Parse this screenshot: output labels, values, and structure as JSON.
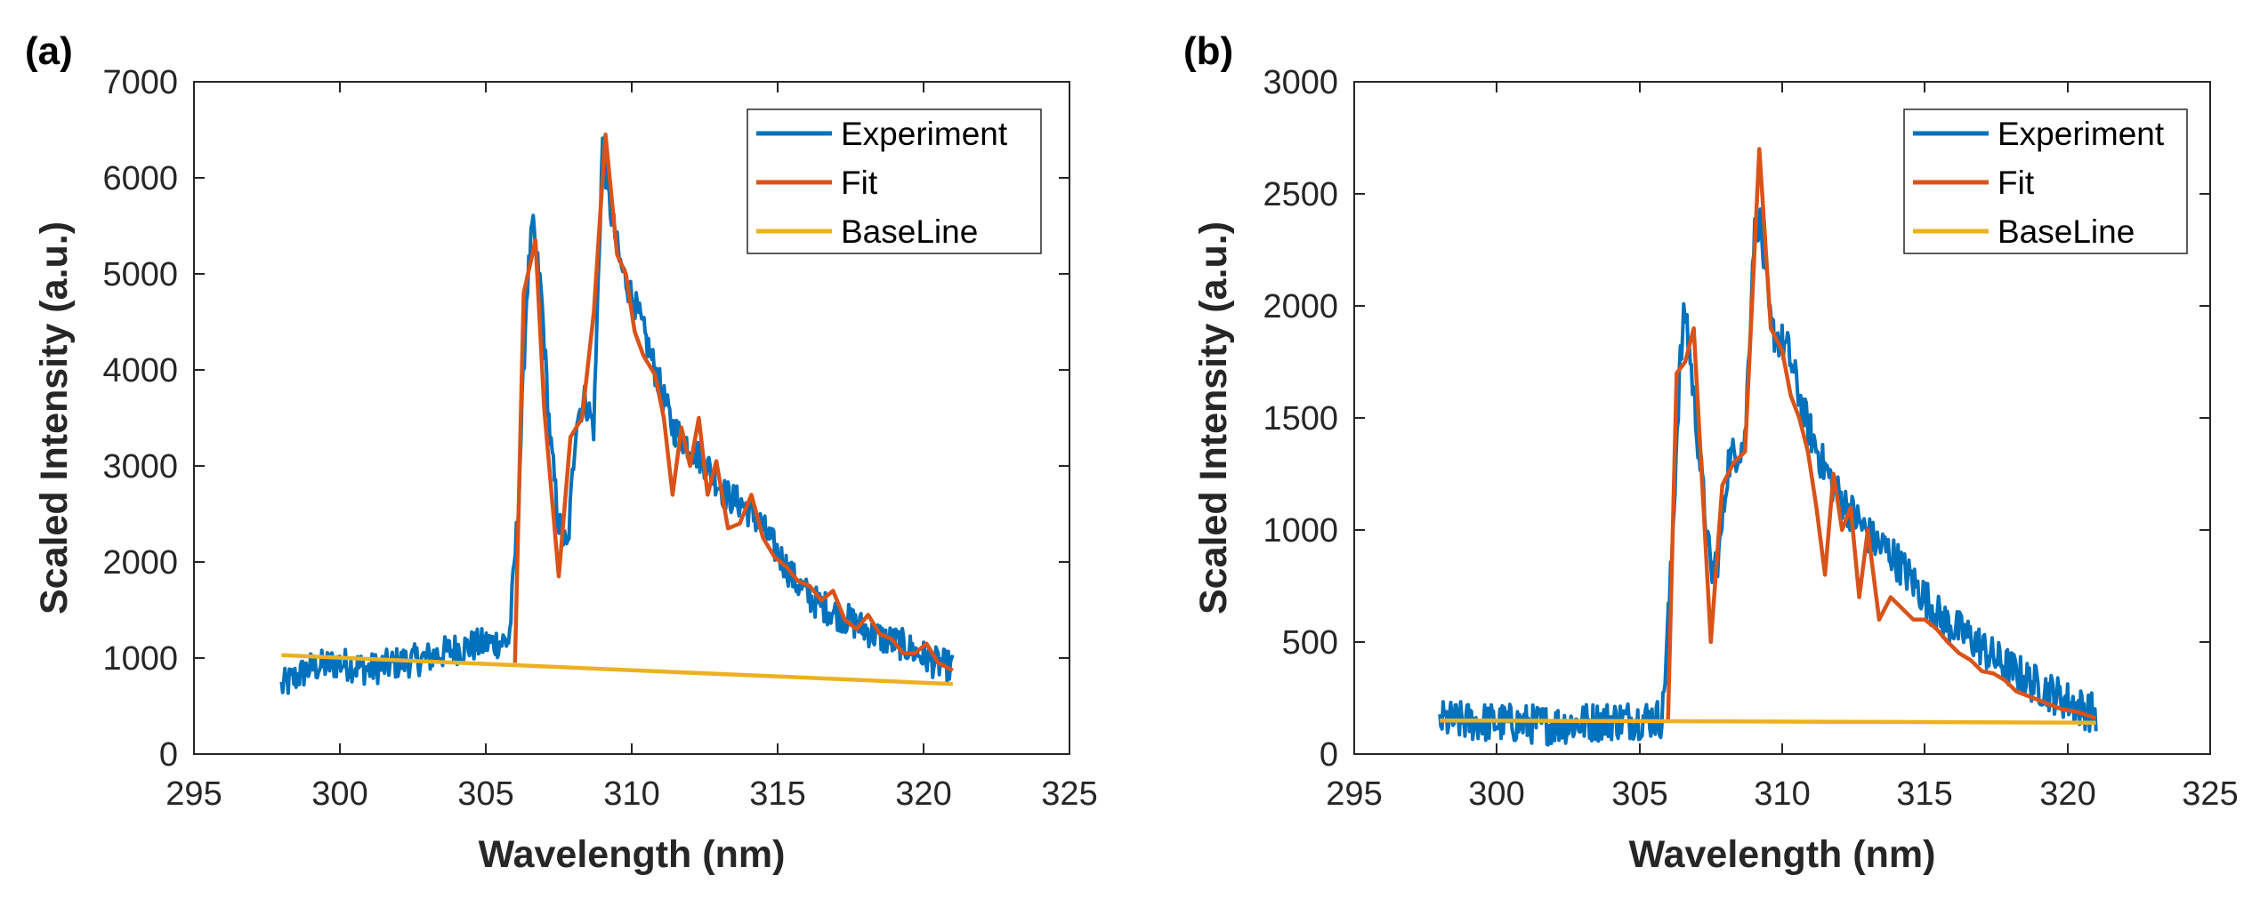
{
  "chart_data": [
    {
      "type": "line",
      "panel_label": "(a)",
      "xlabel": "Wavelength (nm)",
      "ylabel": "Scaled Intensity (a.u.)",
      "xlim": [
        295,
        325
      ],
      "ylim": [
        0,
        7000
      ],
      "xticks": [
        "295",
        "300",
        "305",
        "310",
        "315",
        "320",
        "325"
      ],
      "yticks": [
        "0",
        "1000",
        "2000",
        "3000",
        "4000",
        "5000",
        "6000",
        "7000"
      ],
      "legend_position": "top-right",
      "series": [
        {
          "name": "Experiment",
          "color": "#0072BD",
          "points": [
            [
              298,
              700
            ],
            [
              299,
              900
            ],
            [
              300,
              950
            ],
            [
              301,
              880
            ],
            [
              302,
              950
            ],
            [
              303,
              1000
            ],
            [
              304,
              1100
            ],
            [
              305,
              1150
            ],
            [
              305.8,
              1180
            ],
            [
              306.1,
              2500
            ],
            [
              306.4,
              4800
            ],
            [
              306.6,
              5500
            ],
            [
              306.9,
              4800
            ],
            [
              307.2,
              3300
            ],
            [
              307.5,
              2400
            ],
            [
              307.8,
              2100
            ],
            [
              308.1,
              3500
            ],
            [
              308.4,
              3700
            ],
            [
              308.7,
              3400
            ],
            [
              309.0,
              6400
            ],
            [
              309.2,
              5800
            ],
            [
              309.6,
              5100
            ],
            [
              310.2,
              4600
            ],
            [
              310.8,
              4000
            ],
            [
              311.4,
              3400
            ],
            [
              312.0,
              3200
            ],
            [
              312.6,
              3000
            ],
            [
              313.2,
              2700
            ],
            [
              313.8,
              2600
            ],
            [
              314.4,
              2400
            ],
            [
              315.0,
              2100
            ],
            [
              315.6,
              1800
            ],
            [
              316.2,
              1600
            ],
            [
              316.8,
              1500
            ],
            [
              317.4,
              1400
            ],
            [
              318.0,
              1300
            ],
            [
              318.6,
              1200
            ],
            [
              319.2,
              1150
            ],
            [
              319.8,
              1050
            ],
            [
              320.4,
              950
            ],
            [
              321,
              900
            ]
          ],
          "noise": 170
        },
        {
          "name": "Fit",
          "color": "#D95319",
          "points": [
            [
              306.0,
              950
            ],
            [
              306.3,
              4800
            ],
            [
              306.7,
              5350
            ],
            [
              307.0,
              3600
            ],
            [
              307.5,
              1850
            ],
            [
              307.9,
              3300
            ],
            [
              308.3,
              3500
            ],
            [
              308.7,
              4600
            ],
            [
              309.1,
              6450
            ],
            [
              309.5,
              5200
            ],
            [
              309.8,
              5000
            ],
            [
              310.1,
              4400
            ],
            [
              310.4,
              4150
            ],
            [
              310.8,
              3950
            ],
            [
              311.1,
              3500
            ],
            [
              311.4,
              2700
            ],
            [
              311.7,
              3400
            ],
            [
              312.0,
              3000
            ],
            [
              312.3,
              3500
            ],
            [
              312.6,
              2700
            ],
            [
              312.9,
              3050
            ],
            [
              313.3,
              2350
            ],
            [
              313.7,
              2400
            ],
            [
              314.1,
              2700
            ],
            [
              314.5,
              2250
            ],
            [
              314.9,
              2050
            ],
            [
              315.3,
              1950
            ],
            [
              315.7,
              1800
            ],
            [
              316.1,
              1750
            ],
            [
              316.5,
              1600
            ],
            [
              316.9,
              1700
            ],
            [
              317.3,
              1400
            ],
            [
              317.7,
              1300
            ],
            [
              318.1,
              1450
            ],
            [
              318.5,
              1250
            ],
            [
              318.9,
              1200
            ],
            [
              319.3,
              1050
            ],
            [
              319.7,
              1050
            ],
            [
              320.1,
              1150
            ],
            [
              320.5,
              950
            ],
            [
              321.0,
              870
            ]
          ]
        },
        {
          "name": "BaseLine",
          "color": "#EDB120",
          "points": [
            [
              298,
              1030
            ],
            [
              321,
              730
            ]
          ]
        }
      ]
    },
    {
      "type": "line",
      "panel_label": "(b)",
      "xlabel": "Wavelength (nm)",
      "ylabel": "Scaled Intensity (a.u.)",
      "xlim": [
        295,
        325
      ],
      "ylim": [
        0,
        3000
      ],
      "xticks": [
        "295",
        "300",
        "305",
        "310",
        "315",
        "320",
        "325"
      ],
      "yticks": [
        "0",
        "500",
        "1000",
        "1500",
        "2000",
        "2500",
        "3000"
      ],
      "legend_position": "top-right",
      "series": [
        {
          "name": "Experiment",
          "color": "#0072BD",
          "points": [
            [
              298,
              150
            ],
            [
              300,
              140
            ],
            [
              302,
              130
            ],
            [
              304,
              150
            ],
            [
              305.8,
              160
            ],
            [
              306.1,
              800
            ],
            [
              306.4,
              1700
            ],
            [
              306.6,
              2000
            ],
            [
              306.9,
              1600
            ],
            [
              307.2,
              1200
            ],
            [
              307.5,
              800
            ],
            [
              307.8,
              900
            ],
            [
              308.1,
              1300
            ],
            [
              308.4,
              1350
            ],
            [
              308.7,
              1400
            ],
            [
              309.0,
              2300
            ],
            [
              309.2,
              2400
            ],
            [
              309.6,
              1900
            ],
            [
              310.2,
              1800
            ],
            [
              310.8,
              1500
            ],
            [
              311.4,
              1300
            ],
            [
              312.0,
              1150
            ],
            [
              312.6,
              1050
            ],
            [
              313.2,
              950
            ],
            [
              313.8,
              900
            ],
            [
              314.4,
              800
            ],
            [
              315.0,
              700
            ],
            [
              315.6,
              600
            ],
            [
              316.2,
              550
            ],
            [
              316.8,
              500
            ],
            [
              317.4,
              430
            ],
            [
              318.0,
              380
            ],
            [
              318.6,
              330
            ],
            [
              319.2,
              290
            ],
            [
              319.8,
              250
            ],
            [
              320.4,
              210
            ],
            [
              321,
              180
            ]
          ],
          "noise": 90
        },
        {
          "name": "Fit",
          "color": "#D95319",
          "points": [
            [
              306.0,
              150
            ],
            [
              306.3,
              1700
            ],
            [
              306.6,
              1750
            ],
            [
              306.9,
              1900
            ],
            [
              307.2,
              1200
            ],
            [
              307.5,
              500
            ],
            [
              307.9,
              1200
            ],
            [
              308.3,
              1300
            ],
            [
              308.7,
              1350
            ],
            [
              309.2,
              2700
            ],
            [
              309.6,
              1900
            ],
            [
              310.0,
              1800
            ],
            [
              310.3,
              1600
            ],
            [
              310.6,
              1500
            ],
            [
              310.9,
              1350
            ],
            [
              311.2,
              1100
            ],
            [
              311.5,
              800
            ],
            [
              311.8,
              1250
            ],
            [
              312.1,
              1000
            ],
            [
              312.4,
              1100
            ],
            [
              312.7,
              700
            ],
            [
              313.0,
              1000
            ],
            [
              313.4,
              600
            ],
            [
              313.8,
              700
            ],
            [
              314.2,
              650
            ],
            [
              314.6,
              600
            ],
            [
              315.0,
              600
            ],
            [
              315.4,
              560
            ],
            [
              315.8,
              500
            ],
            [
              316.2,
              450
            ],
            [
              316.6,
              420
            ],
            [
              317.0,
              370
            ],
            [
              317.4,
              360
            ],
            [
              317.8,
              330
            ],
            [
              318.2,
              280
            ],
            [
              318.6,
              260
            ],
            [
              319.0,
              240
            ],
            [
              319.4,
              220
            ],
            [
              319.8,
              200
            ],
            [
              320.3,
              190
            ],
            [
              321.0,
              160
            ]
          ]
        },
        {
          "name": "BaseLine",
          "color": "#EDB120",
          "points": [
            [
              298,
              150
            ],
            [
              321,
              140
            ]
          ]
        }
      ]
    }
  ]
}
